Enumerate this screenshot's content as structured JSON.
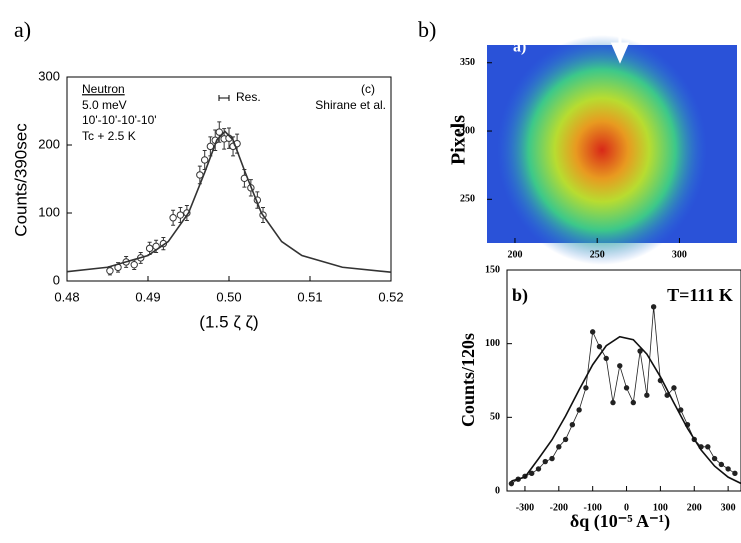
{
  "chart_data": [
    {
      "type": "scatter",
      "panel_label": "a)",
      "xlabel": "(1.5 ζ ζ)",
      "ylabel": "Counts/390sec",
      "xlim": [
        0.48,
        0.52
      ],
      "xticks": [
        0.48,
        0.49,
        {
          "value": 0.5,
          "label": "0.50"
        },
        0.51,
        0.52
      ],
      "ylim": [
        0,
        300
      ],
      "yticks": [
        0,
        100,
        200,
        300
      ],
      "annotations": [
        "Neutron",
        "5.0 meV",
        "10'-10'-10'-10'",
        "Tc + 2.5 K",
        "Res.",
        "(c)",
        "Shirane et al."
      ],
      "series": [
        {
          "mode": "markers",
          "marker": "open-circle",
          "color": "#333333",
          "x": [
            0.4853,
            0.4863,
            0.4873,
            0.4883,
            0.4891,
            0.4902,
            0.491,
            0.4919,
            0.4931,
            0.494,
            0.4948,
            0.4964,
            0.497,
            0.4977,
            0.4983,
            0.4988,
            0.4994,
            0.5,
            0.5005,
            0.501,
            0.5019,
            0.5027,
            0.5035,
            0.5042
          ],
          "values": [
            15,
            20,
            28,
            24,
            34,
            48,
            51,
            55,
            93,
            97,
            100,
            156,
            178,
            198,
            207,
            219,
            209,
            210,
            198,
            202,
            151,
            137,
            119,
            97
          ],
          "errors": [
            6,
            7,
            8,
            7,
            8,
            9,
            9,
            9,
            11,
            11,
            11,
            13,
            14,
            14,
            15,
            15,
            15,
            15,
            14,
            14,
            13,
            12,
            12,
            11
          ]
        },
        {
          "mode": "line",
          "color": "#333333",
          "x": [
            0.48,
            0.485,
            0.49,
            0.4925,
            0.495,
            0.497,
            0.4985,
            0.4995,
            0.5005,
            0.502,
            0.504,
            0.5065,
            0.509,
            0.514,
            0.52
          ],
          "values": [
            13.7,
            20.2,
            37.4,
            58,
            100,
            159.7,
            207.4,
            220,
            207.4,
            159.7,
            100,
            58,
            37.4,
            20.2,
            12.9
          ]
        }
      ]
    },
    {
      "type": "image",
      "panel_label": "b)",
      "inset_label": "a)",
      "ylabel": "Pixels",
      "xlim": [
        183,
        335
      ],
      "xticks": [
        200,
        250,
        300
      ],
      "ylim": [
        218,
        363
      ],
      "yticks": [
        250,
        300,
        350
      ]
    },
    {
      "type": "scatter",
      "panel_label": "b)",
      "annotations": [
        "T=111 K"
      ],
      "xlabel": "δq (10⁻⁵ A⁻¹)",
      "ylabel": "Counts/120s",
      "xlim": [
        -353,
        338
      ],
      "xticks": [
        -300,
        -200,
        -100,
        0,
        100,
        200,
        300
      ],
      "ylim": [
        0,
        150
      ],
      "yticks": [
        0,
        50,
        100,
        150
      ],
      "series": [
        {
          "mode": "lines+markers",
          "marker": "dot",
          "color": "#222222",
          "x": [
            -340,
            -320,
            -300,
            -280,
            -260,
            -240,
            -220,
            -200,
            -180,
            -160,
            -140,
            -120,
            -100,
            -80,
            -60,
            -40,
            -20,
            0,
            20,
            40,
            60,
            80,
            100,
            120,
            140,
            160,
            180,
            200,
            220,
            240,
            260,
            280,
            300,
            320
          ],
          "values": [
            5,
            8,
            10,
            12,
            15,
            20,
            22,
            30,
            35,
            45,
            55,
            70,
            108,
            98,
            90,
            60,
            85,
            70,
            60,
            95,
            65,
            125,
            75,
            65,
            70,
            55,
            45,
            35,
            30,
            30,
            22,
            18,
            15,
            12
          ]
        },
        {
          "mode": "line",
          "color": "#111111",
          "x": [
            -340,
            -300,
            -260,
            -220,
            -180,
            -140,
            -100,
            -60,
            -20,
            20,
            60,
            100,
            140,
            180,
            220,
            260,
            300,
            340
          ],
          "values": [
            6.8,
            9.4,
            21.9,
            34.8,
            50.9,
            68.7,
            85.7,
            98.6,
            104.7,
            102.7,
            92.9,
            77.5,
            59.7,
            42.5,
            27.9,
            16.9,
            9.4,
            4.9
          ]
        }
      ]
    }
  ]
}
